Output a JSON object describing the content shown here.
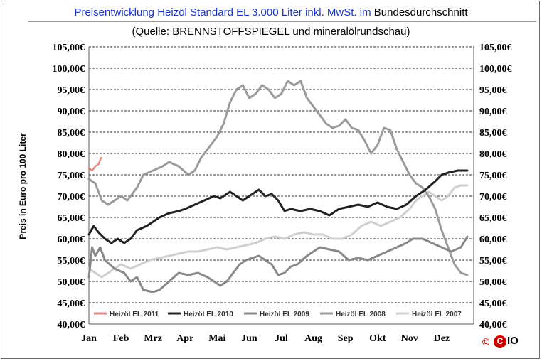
{
  "header": {
    "title_main": "Preisentwicklung  Heizöl  Standard  EL  3.000  Liter  inkl.  MwSt.  im",
    "title_tail": "Bundesdurchschnitt",
    "subtitle": "(Quelle:  BRENNSTOFFSPIEGEL  und  mineralölrundschau)"
  },
  "logo": {
    "copyright": "©",
    "ball": "C",
    "tail": "IO"
  },
  "chart_data": {
    "type": "line",
    "title": "Preisentwicklung Heizöl Standard EL 3.000 Liter inkl. MwSt. im Bundesdurchschnitt",
    "subtitle": "(Quelle: BRENNSTOFFSPIEGEL und mineralölrundschau)",
    "ylabel": "Preis in Euro pro 100 Liter",
    "xlabel": "",
    "ylim": [
      40,
      105
    ],
    "y_ticks": [
      "40,00€",
      "45,00€",
      "50,00€",
      "55,00€",
      "60,00€",
      "65,00€",
      "70,00€",
      "75,00€",
      "80,00€",
      "85,00€",
      "90,00€",
      "95,00€",
      "100,00€",
      "105,00€"
    ],
    "months": [
      "Jan",
      "Feb",
      "Mrz",
      "Apr",
      "Mai",
      "Jun",
      "Jul",
      "Aug",
      "Sep",
      "Okt",
      "Nov",
      "Dez"
    ],
    "grid": true,
    "legend_position": "bottom",
    "series": [
      {
        "name": "Heizöl EL 2011",
        "color": "#e08a80",
        "width": 2.5,
        "points": [
          [
            0,
            76.5
          ],
          [
            0.1,
            76
          ],
          [
            0.2,
            77
          ],
          [
            0.3,
            77.5
          ],
          [
            0.38,
            79
          ]
        ]
      },
      {
        "name": "Heizöl EL 2010",
        "color": "#222222",
        "width": 3,
        "points": [
          [
            0,
            61
          ],
          [
            0.15,
            63
          ],
          [
            0.3,
            61.5
          ],
          [
            0.5,
            60
          ],
          [
            0.7,
            59
          ],
          [
            0.9,
            60
          ],
          [
            1.1,
            59
          ],
          [
            1.3,
            60
          ],
          [
            1.5,
            62
          ],
          [
            1.8,
            63
          ],
          [
            2,
            64
          ],
          [
            2.2,
            65
          ],
          [
            2.5,
            66
          ],
          [
            2.8,
            66.5
          ],
          [
            3,
            67
          ],
          [
            3.3,
            68
          ],
          [
            3.6,
            69
          ],
          [
            3.9,
            70
          ],
          [
            4.1,
            69.5
          ],
          [
            4.4,
            71
          ],
          [
            4.6,
            70
          ],
          [
            4.8,
            69
          ],
          [
            5,
            70
          ],
          [
            5.3,
            71.5
          ],
          [
            5.5,
            70
          ],
          [
            5.7,
            70.5
          ],
          [
            5.9,
            69
          ],
          [
            6.1,
            66.5
          ],
          [
            6.3,
            67
          ],
          [
            6.6,
            66.5
          ],
          [
            6.9,
            67
          ],
          [
            7.2,
            66.5
          ],
          [
            7.5,
            65.5
          ],
          [
            7.8,
            67
          ],
          [
            8.1,
            67.5
          ],
          [
            8.4,
            68
          ],
          [
            8.7,
            67.5
          ],
          [
            9,
            68.5
          ],
          [
            9.3,
            67.5
          ],
          [
            9.6,
            67
          ],
          [
            9.9,
            68
          ],
          [
            10.2,
            70
          ],
          [
            10.5,
            71.5
          ],
          [
            10.8,
            73.5
          ],
          [
            11,
            75
          ],
          [
            11.2,
            75.5
          ],
          [
            11.5,
            76
          ],
          [
            11.8,
            76
          ]
        ]
      },
      {
        "name": "Heizöl EL 2009",
        "color": "#888888",
        "width": 3,
        "points": [
          [
            0,
            51
          ],
          [
            0.1,
            58
          ],
          [
            0.2,
            56
          ],
          [
            0.35,
            58
          ],
          [
            0.5,
            55
          ],
          [
            0.8,
            53
          ],
          [
            1.1,
            52
          ],
          [
            1.3,
            50
          ],
          [
            1.5,
            51
          ],
          [
            1.7,
            48
          ],
          [
            2,
            47.5
          ],
          [
            2.2,
            48
          ],
          [
            2.5,
            50
          ],
          [
            2.8,
            52
          ],
          [
            3.1,
            51.5
          ],
          [
            3.4,
            52
          ],
          [
            3.7,
            51
          ],
          [
            3.9,
            50
          ],
          [
            4.1,
            49
          ],
          [
            4.3,
            50
          ],
          [
            4.5,
            52
          ],
          [
            4.7,
            54
          ],
          [
            4.9,
            55
          ],
          [
            5.1,
            55.5
          ],
          [
            5.3,
            56
          ],
          [
            5.5,
            55
          ],
          [
            5.7,
            54
          ],
          [
            5.9,
            51.5
          ],
          [
            6.1,
            52
          ],
          [
            6.3,
            53.5
          ],
          [
            6.5,
            54
          ],
          [
            6.8,
            56
          ],
          [
            7,
            57
          ],
          [
            7.2,
            58
          ],
          [
            7.5,
            57.5
          ],
          [
            7.8,
            57
          ],
          [
            8.1,
            55
          ],
          [
            8.4,
            55.5
          ],
          [
            8.7,
            55
          ],
          [
            9,
            56
          ],
          [
            9.3,
            57
          ],
          [
            9.6,
            58
          ],
          [
            9.9,
            59
          ],
          [
            10.1,
            60
          ],
          [
            10.4,
            60
          ],
          [
            10.7,
            59
          ],
          [
            11,
            58
          ],
          [
            11.3,
            57
          ],
          [
            11.6,
            58
          ],
          [
            11.8,
            60.5
          ]
        ]
      },
      {
        "name": "Heizöl EL 2008",
        "color": "#9a9a9a",
        "width": 3,
        "points": [
          [
            0,
            74
          ],
          [
            0.2,
            73
          ],
          [
            0.4,
            69
          ],
          [
            0.6,
            68
          ],
          [
            0.8,
            69
          ],
          [
            1,
            70
          ],
          [
            1.2,
            69
          ],
          [
            1.5,
            72
          ],
          [
            1.7,
            75
          ],
          [
            2,
            76
          ],
          [
            2.3,
            77
          ],
          [
            2.5,
            78
          ],
          [
            2.8,
            77
          ],
          [
            3.1,
            75
          ],
          [
            3.3,
            76
          ],
          [
            3.5,
            79
          ],
          [
            3.7,
            81
          ],
          [
            4,
            84
          ],
          [
            4.2,
            87
          ],
          [
            4.4,
            92
          ],
          [
            4.6,
            95
          ],
          [
            4.8,
            96
          ],
          [
            5,
            93
          ],
          [
            5.2,
            94
          ],
          [
            5.4,
            96
          ],
          [
            5.6,
            95
          ],
          [
            5.8,
            93
          ],
          [
            6,
            94
          ],
          [
            6.2,
            97
          ],
          [
            6.4,
            96
          ],
          [
            6.6,
            97
          ],
          [
            6.8,
            93
          ],
          [
            7,
            91
          ],
          [
            7.2,
            89
          ],
          [
            7.4,
            87
          ],
          [
            7.6,
            86
          ],
          [
            7.8,
            86.5
          ],
          [
            8,
            88
          ],
          [
            8.2,
            86
          ],
          [
            8.4,
            85.5
          ],
          [
            8.6,
            83
          ],
          [
            8.8,
            80
          ],
          [
            9,
            82
          ],
          [
            9.2,
            86
          ],
          [
            9.4,
            85.5
          ],
          [
            9.6,
            81
          ],
          [
            9.8,
            78
          ],
          [
            10,
            75
          ],
          [
            10.2,
            73
          ],
          [
            10.4,
            72
          ],
          [
            10.6,
            70
          ],
          [
            10.8,
            67
          ],
          [
            11,
            62
          ],
          [
            11.2,
            58
          ],
          [
            11.4,
            54
          ],
          [
            11.6,
            52
          ],
          [
            11.8,
            51.5
          ]
        ]
      },
      {
        "name": "Heizöl EL 2007",
        "color": "#cfcfcf",
        "width": 3,
        "points": [
          [
            0,
            53
          ],
          [
            0.2,
            52
          ],
          [
            0.4,
            51
          ],
          [
            0.6,
            52
          ],
          [
            0.8,
            53
          ],
          [
            1,
            54
          ],
          [
            1.3,
            53
          ],
          [
            1.6,
            54
          ],
          [
            1.9,
            55
          ],
          [
            2.2,
            55.5
          ],
          [
            2.5,
            56
          ],
          [
            2.8,
            56.5
          ],
          [
            3.1,
            57
          ],
          [
            3.4,
            57
          ],
          [
            3.7,
            57.5
          ],
          [
            4,
            58
          ],
          [
            4.3,
            57.5
          ],
          [
            4.6,
            58
          ],
          [
            4.9,
            58.5
          ],
          [
            5.2,
            59
          ],
          [
            5.5,
            60
          ],
          [
            5.8,
            60.5
          ],
          [
            6.1,
            60
          ],
          [
            6.4,
            61
          ],
          [
            6.7,
            61.5
          ],
          [
            7,
            61
          ],
          [
            7.3,
            61
          ],
          [
            7.6,
            60
          ],
          [
            7.9,
            60
          ],
          [
            8.2,
            61
          ],
          [
            8.5,
            63
          ],
          [
            8.8,
            64
          ],
          [
            9.1,
            63
          ],
          [
            9.4,
            64
          ],
          [
            9.7,
            65
          ],
          [
            10,
            67
          ],
          [
            10.2,
            69
          ],
          [
            10.4,
            70
          ],
          [
            10.6,
            71
          ],
          [
            10.8,
            70
          ],
          [
            11,
            69
          ],
          [
            11.2,
            70
          ],
          [
            11.4,
            72
          ],
          [
            11.6,
            72.5
          ],
          [
            11.8,
            72.5
          ]
        ]
      }
    ]
  }
}
